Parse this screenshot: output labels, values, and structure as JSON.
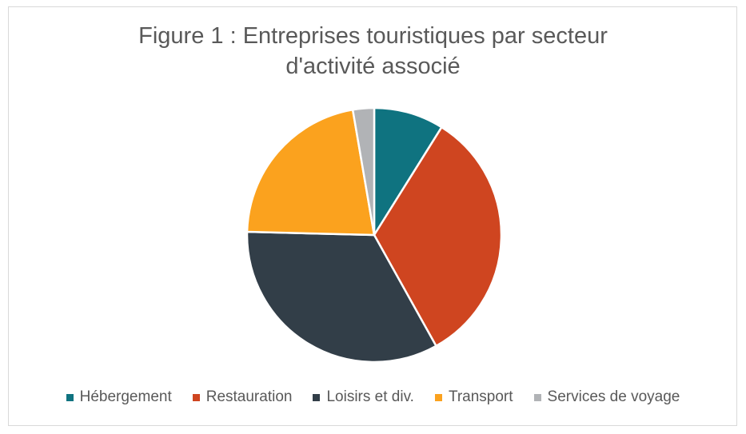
{
  "chart_data": {
    "type": "pie",
    "title": "Figure 1 : Entreprises touristiques par secteur d'activité associé",
    "title_lines": [
      "Figure 1 : Entreprises touristiques par secteur",
      "d'activité associé"
    ],
    "categories": [
      "Hébergement",
      "Restauration",
      "Loisirs et div.",
      "Transport",
      "Services de voyage"
    ],
    "values": [
      8.9,
      33.0,
      33.5,
      21.9,
      2.7
    ],
    "colors": [
      "#0f7380",
      "#cf4520",
      "#323e48",
      "#fba21e",
      "#b1b3b6"
    ],
    "legend_position": "bottom",
    "start_angle": "12 o'clock, clockwise"
  }
}
